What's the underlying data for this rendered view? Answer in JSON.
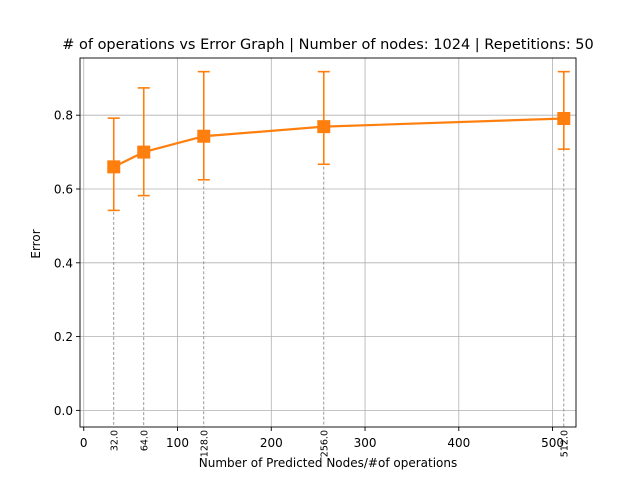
{
  "chart_data": {
    "type": "line",
    "title": "# of operations vs Error Graph | Number of nodes: 1024 | Repetitions: 50",
    "xlabel": "Number of Predicted Nodes/#of operations",
    "ylabel": "Error",
    "xlim": [
      -4,
      525
    ],
    "ylim": [
      -0.045,
      0.955
    ],
    "grid": true,
    "x_ticks": [
      0,
      100,
      200,
      300,
      400,
      500
    ],
    "y_ticks": [
      0.0,
      0.2,
      0.4,
      0.6,
      0.8
    ],
    "y_tick_labels": [
      "0.0",
      "0.2",
      "0.4",
      "0.6",
      "0.8"
    ],
    "series": [
      {
        "color": "#ff7f0e",
        "x": [
          32,
          64,
          128,
          256,
          512
        ],
        "y": [
          0.66,
          0.7,
          0.743,
          0.769,
          0.791
        ],
        "err_low": [
          0.542,
          0.582,
          0.625,
          0.667,
          0.708
        ],
        "err_high": [
          0.792,
          0.874,
          0.918,
          0.918,
          0.918
        ],
        "point_labels": [
          "32.0",
          "64.0",
          "128.0",
          "256.0",
          "512.0"
        ]
      }
    ]
  }
}
